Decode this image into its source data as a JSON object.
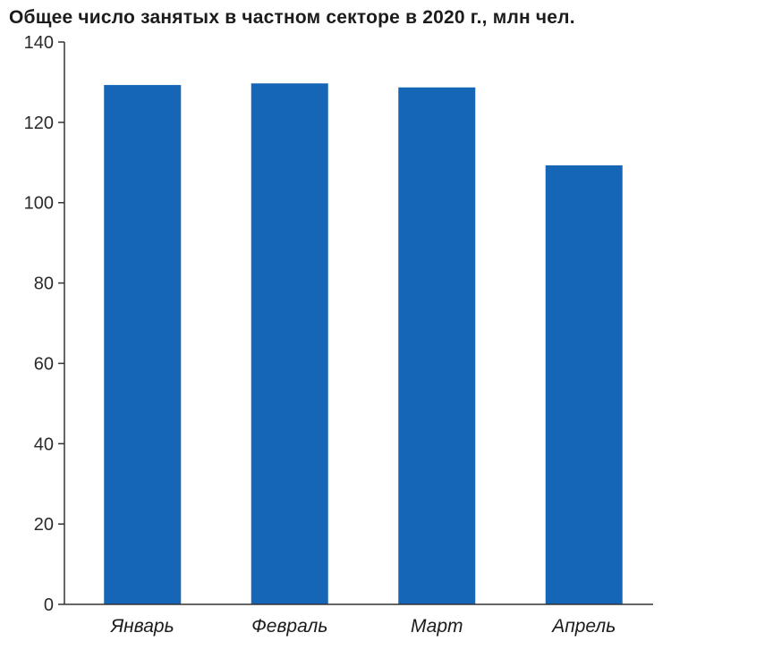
{
  "chart_data": {
    "type": "bar",
    "title": "Общее число занятых в частном секторе в 2020 г., млн чел.",
    "categories": [
      "Январь",
      "Февраль",
      "Март",
      "Апрель"
    ],
    "series": [
      {
        "values": [
          129.3,
          129.7,
          128.7,
          109.3
        ]
      }
    ],
    "ylim": [
      0,
      140
    ],
    "yticks": [
      "0",
      "20",
      "40",
      "60",
      "80",
      "100",
      "120",
      "140"
    ],
    "grid": false,
    "bar_color": "#1566b6",
    "axis_color": "#333333"
  }
}
